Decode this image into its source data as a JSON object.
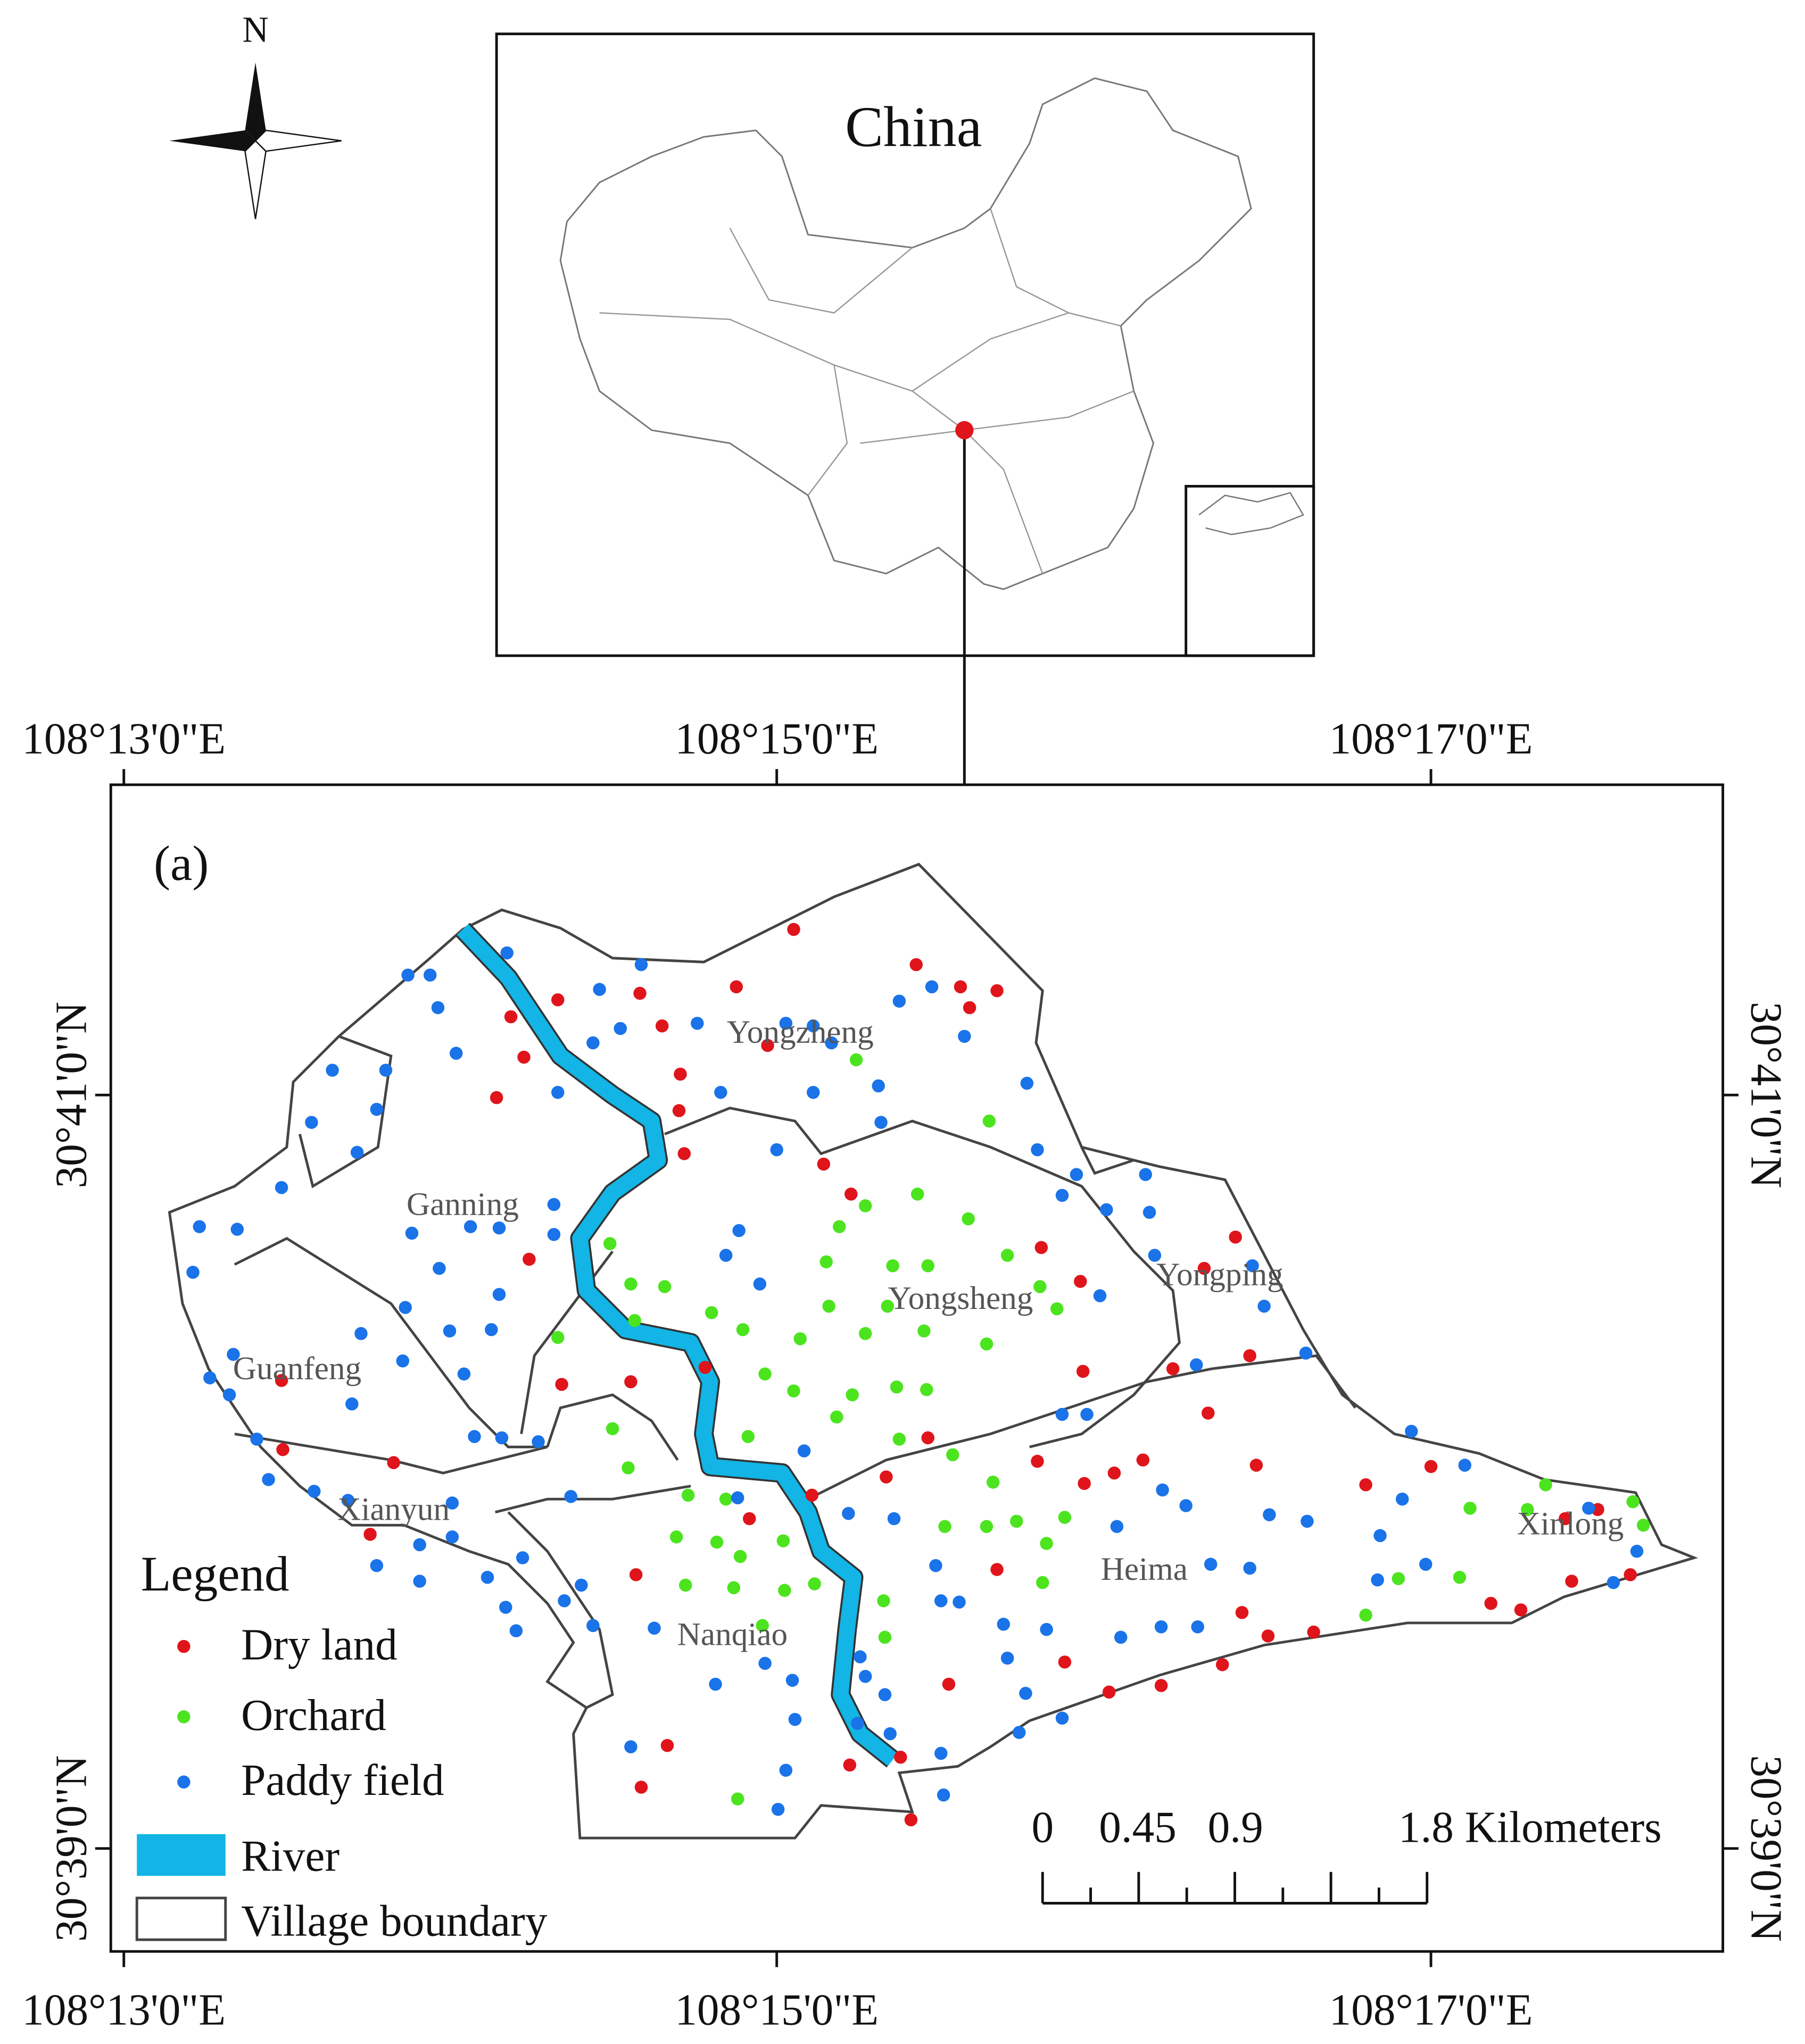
{
  "compass": {
    "label": "N"
  },
  "inset": {
    "title": "China"
  },
  "map": {
    "panel_label": "(a)",
    "top_longitudes": [
      "108°13'0\"E",
      "108°15'0\"E",
      "108°17'0\"E"
    ],
    "bottom_longitudes": [
      "108°13'0\"E",
      "108°15'0\"E",
      "108°17'0\"E"
    ],
    "left_latitudes": [
      "30°41'0\"N",
      "30°39'0\"N"
    ],
    "right_latitudes": [
      "30°41'0\"N",
      "30°39'0\"N"
    ],
    "villages": [
      "Yongzheng",
      "Ganning",
      "Yongsheng",
      "Yongping",
      "Guanfeng",
      "Xianyun",
      "Nanqiao",
      "Heima",
      "Xinlong"
    ],
    "legend": {
      "title": "Legend",
      "items": [
        "Dry land",
        "Orchard",
        "Paddy field",
        "River",
        "Village boundary"
      ]
    },
    "scale_bar": {
      "labels": [
        "0",
        "0.45",
        "0.9",
        "1.8 Kilometers"
      ]
    }
  }
}
